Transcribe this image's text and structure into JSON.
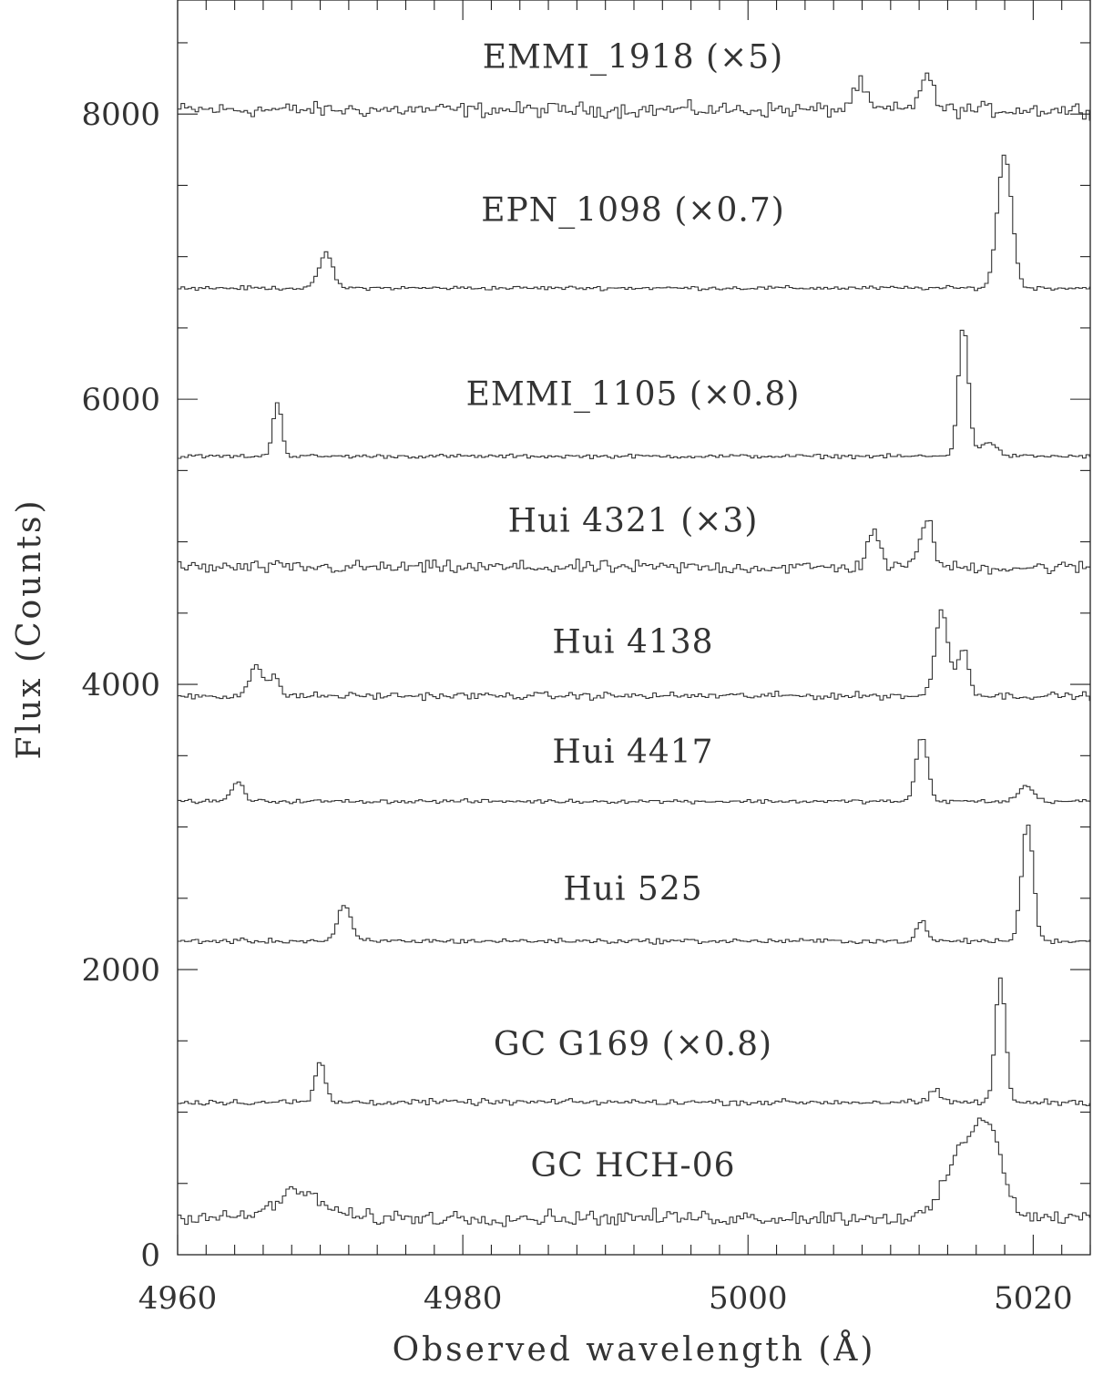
{
  "chart_data": {
    "type": "line",
    "xlabel": "Observed wavelength (Å)",
    "ylabel": "Flux (Counts)",
    "xlim": [
      4960,
      5024
    ],
    "ylim": [
      0,
      8800
    ],
    "xticks": [
      4960,
      4980,
      5000,
      5020
    ],
    "yticks": [
      0,
      2000,
      4000,
      6000,
      8000
    ],
    "series": [
      {
        "name": "EMMI_1918 (×5)",
        "baseline": 8030,
        "noise": 45,
        "lines": [
          [
            5007.8,
            180,
            0.45
          ],
          [
            5012.5,
            250,
            0.45
          ]
        ]
      },
      {
        "name": "EPN_1098 (×0.7)",
        "baseline": 6780,
        "noise": 12,
        "lines": [
          [
            4970.4,
            250,
            0.45
          ],
          [
            5018.0,
            940,
            0.5
          ]
        ]
      },
      {
        "name": "EMMI_1105 (×0.8)",
        "baseline": 5600,
        "noise": 12,
        "lines": [
          [
            4967.0,
            390,
            0.3
          ],
          [
            5015.1,
            920,
            0.35
          ],
          [
            5016.8,
            100,
            0.6
          ]
        ]
      },
      {
        "name": "Hui 4321 (×3)",
        "baseline": 4820,
        "noise": 40,
        "lines": [
          [
            5008.8,
            280,
            0.4
          ],
          [
            5012.5,
            350,
            0.45
          ]
        ]
      },
      {
        "name": "Hui 4138",
        "baseline": 3920,
        "noise": 22,
        "lines": [
          [
            4965.5,
            210,
            0.45
          ],
          [
            4966.8,
            160,
            0.3
          ],
          [
            5013.6,
            600,
            0.45
          ],
          [
            5015.1,
            330,
            0.4
          ]
        ]
      },
      {
        "name": "Hui 4417",
        "baseline": 3180,
        "noise": 12,
        "lines": [
          [
            4964.2,
            140,
            0.4
          ],
          [
            5012.2,
            450,
            0.4
          ],
          [
            5019.5,
            110,
            0.5
          ]
        ]
      },
      {
        "name": "Hui 525",
        "baseline": 2200,
        "noise": 15,
        "lines": [
          [
            4971.7,
            250,
            0.45
          ],
          [
            5012.2,
            150,
            0.3
          ],
          [
            5019.6,
            830,
            0.4
          ]
        ]
      },
      {
        "name": "GC G169 (×0.8)",
        "baseline": 1070,
        "noise": 18,
        "lines": [
          [
            4970.0,
            280,
            0.35
          ],
          [
            5017.7,
            870,
            0.35
          ],
          [
            5013.1,
            90,
            0.3
          ]
        ]
      },
      {
        "name": "GC HCH-06",
        "baseline": 260,
        "noise": 45,
        "lines": [
          [
            4968.5,
            180,
            1.6
          ],
          [
            5015.0,
            470,
            1.1
          ],
          [
            5017.0,
            580,
            0.9
          ]
        ]
      }
    ]
  }
}
